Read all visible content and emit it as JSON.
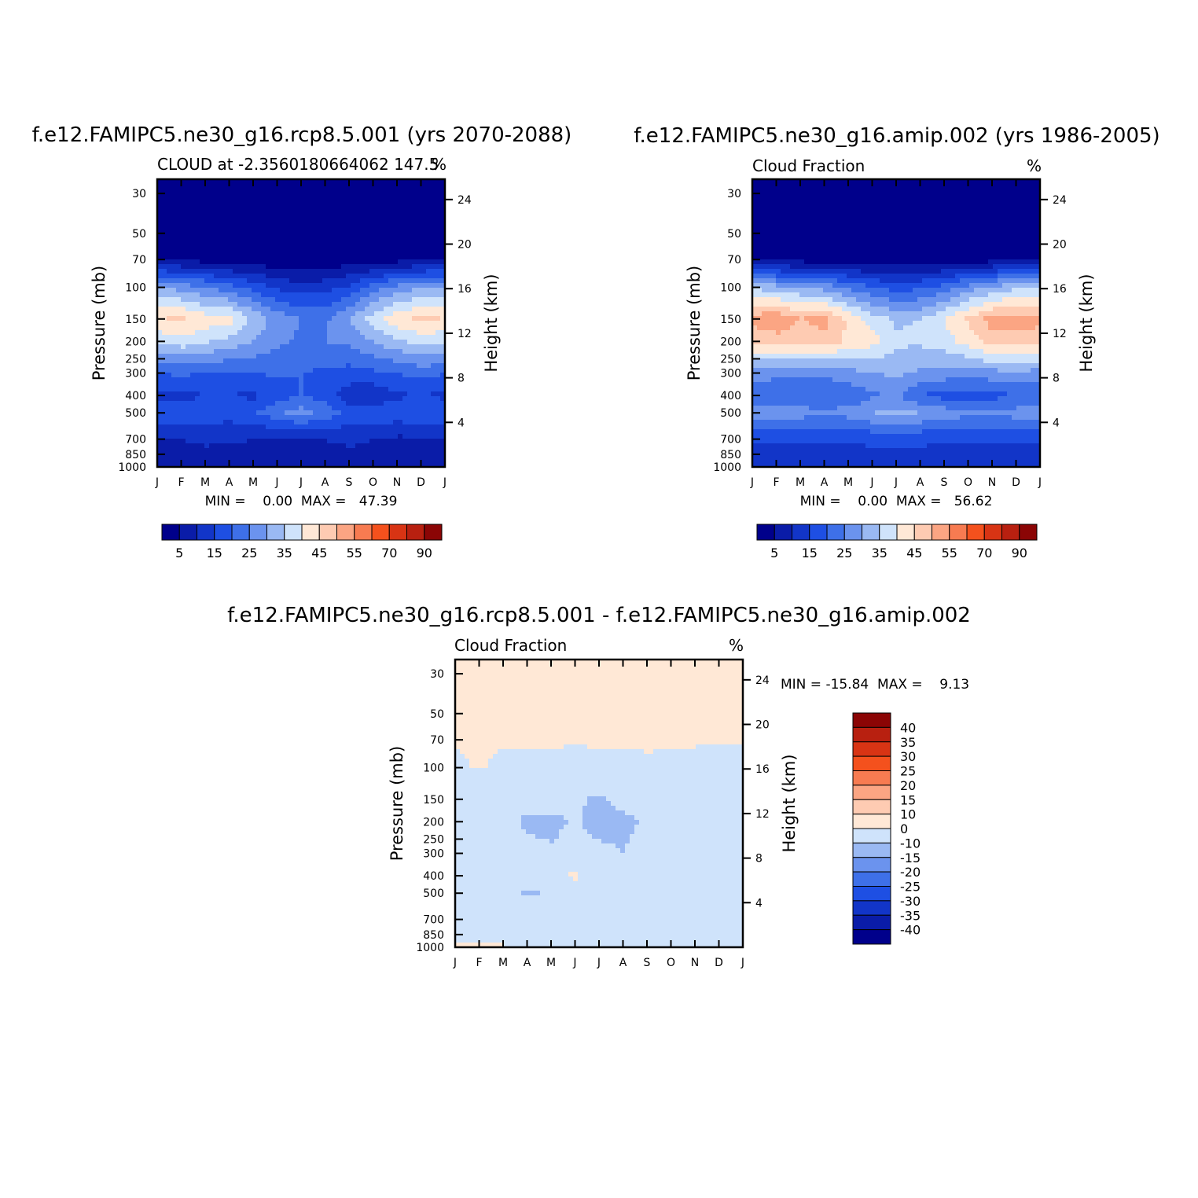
{
  "colors": {
    "abs_scale": [
      "#00008b",
      "#0a1ca8",
      "#1235c8",
      "#1e4fe3",
      "#3e70e8",
      "#6b93ee",
      "#9ab9f3",
      "#cfe3fb",
      "#ffe8d6",
      "#fecbb2",
      "#fba583",
      "#f77b51",
      "#f4511d",
      "#d83414",
      "#b82010",
      "#8b0505"
    ],
    "diff_scale": [
      "#00008b",
      "#0a1ca8",
      "#1235c8",
      "#1e4fe3",
      "#3e70e8",
      "#6b93ee",
      "#9ab9f3",
      "#cfe3fb",
      "#ffe8d6",
      "#fecbb2",
      "#fba583",
      "#f77b51",
      "#f4511d",
      "#d83414",
      "#b82010",
      "#8b0505"
    ]
  },
  "chart_data": [
    {
      "type": "heatmap",
      "title": "f.e12.FAMIPC5.ne30_g16.rcp8.5.001 (yrs 2070-2088)",
      "subtitle_left": "CLOUD at -2.3560180664062 147.5",
      "subtitle_right": "%",
      "xlabel": "",
      "ylabel": "Pressure (mb)",
      "ylabel_right": "Height (km)",
      "x_ticks": [
        "J",
        "F",
        "M",
        "A",
        "M",
        "J",
        "J",
        "A",
        "S",
        "O",
        "N",
        "D",
        "J"
      ],
      "y_ticks": [
        30,
        50,
        70,
        100,
        150,
        200,
        250,
        300,
        400,
        500,
        700,
        850,
        1000
      ],
      "y_right_ticks": [
        24,
        20,
        16,
        12,
        8,
        4
      ],
      "ylim": [
        1000,
        25
      ],
      "stats": "MIN =    0.00  MAX =   47.39",
      "colorbar_labels": [
        "5",
        "15",
        "25",
        "35",
        "45",
        "55",
        "70",
        "90"
      ],
      "field": {
        "months": [
          0,
          1,
          2,
          3,
          4,
          5,
          6,
          7,
          8,
          9,
          10,
          11,
          12
        ],
        "levels_mb": [
          25,
          70,
          100,
          150,
          200,
          300,
          400,
          500,
          700,
          850,
          1000
        ],
        "values": [
          [
            0,
            0,
            0,
            0,
            0,
            0,
            0,
            0,
            0,
            0,
            0,
            0,
            0
          ],
          [
            5,
            4,
            3,
            2,
            2,
            1,
            1,
            1,
            2,
            2,
            3,
            4,
            5
          ],
          [
            30,
            28,
            25,
            22,
            18,
            14,
            12,
            13,
            16,
            22,
            27,
            30,
            30
          ],
          [
            45,
            46,
            43,
            42,
            34,
            28,
            25,
            24,
            30,
            38,
            44,
            46,
            45
          ],
          [
            36,
            38,
            36,
            33,
            30,
            26,
            24,
            25,
            26,
            30,
            34,
            37,
            36
          ],
          [
            20,
            21,
            20,
            19,
            20,
            21,
            20,
            19,
            18,
            19,
            20,
            22,
            20
          ],
          [
            14,
            13,
            15,
            15,
            14,
            17,
            20,
            18,
            12,
            11,
            14,
            15,
            14
          ],
          [
            19,
            20,
            18,
            17,
            19,
            24,
            27,
            23,
            18,
            19,
            18,
            19,
            19
          ],
          [
            9,
            10,
            11,
            11,
            10,
            9,
            9,
            10,
            11,
            10,
            9,
            9,
            9
          ],
          [
            6,
            8,
            9,
            7,
            8,
            9,
            9,
            9,
            9,
            9,
            8,
            6,
            6
          ],
          [
            10,
            10,
            10,
            10,
            10,
            10,
            10,
            10,
            10,
            10,
            10,
            10,
            10
          ]
        ]
      }
    },
    {
      "type": "heatmap",
      "title": "f.e12.FAMIPC5.ne30_g16.amip.002 (yrs 1986-2005)",
      "subtitle_left": "Cloud Fraction",
      "subtitle_right": "%",
      "xlabel": "",
      "ylabel": "Pressure (mb)",
      "ylabel_right": "Height (km)",
      "x_ticks": [
        "J",
        "F",
        "M",
        "A",
        "M",
        "J",
        "J",
        "A",
        "S",
        "O",
        "N",
        "D",
        "J"
      ],
      "y_ticks": [
        30,
        50,
        70,
        100,
        150,
        200,
        250,
        300,
        400,
        500,
        700,
        850,
        1000
      ],
      "y_right_ticks": [
        24,
        20,
        16,
        12,
        8,
        4
      ],
      "ylim": [
        1000,
        25
      ],
      "stats": "MIN =    0.00  MAX =   56.62",
      "colorbar_labels": [
        "5",
        "15",
        "25",
        "35",
        "45",
        "55",
        "70",
        "90"
      ],
      "field": {
        "months": [
          0,
          1,
          2,
          3,
          4,
          5,
          6,
          7,
          8,
          9,
          10,
          11,
          12
        ],
        "levels_mb": [
          25,
          70,
          100,
          150,
          200,
          300,
          400,
          500,
          700,
          850,
          1000
        ],
        "values": [
          [
            0,
            0,
            0,
            0,
            0,
            0,
            0,
            0,
            0,
            0,
            0,
            0,
            0
          ],
          [
            4,
            3,
            3,
            2,
            2,
            1,
            1,
            1,
            2,
            2,
            3,
            4,
            4
          ],
          [
            34,
            32,
            30,
            28,
            24,
            20,
            18,
            19,
            22,
            27,
            31,
            34,
            34
          ],
          [
            52,
            55,
            50,
            52,
            44,
            38,
            34,
            35,
            40,
            46,
            52,
            53,
            52
          ],
          [
            46,
            47,
            47,
            48,
            44,
            42,
            36,
            36,
            38,
            42,
            48,
            48,
            46
          ],
          [
            28,
            26,
            26,
            26,
            28,
            30,
            31,
            29,
            28,
            28,
            28,
            29,
            28
          ],
          [
            22,
            22,
            21,
            21,
            21,
            24,
            26,
            20,
            18,
            17,
            18,
            20,
            22
          ],
          [
            27,
            28,
            27,
            26,
            27,
            30,
            31,
            30,
            28,
            26,
            26,
            27,
            27
          ],
          [
            16,
            16,
            16,
            16,
            16,
            16,
            16,
            16,
            16,
            16,
            16,
            16,
            16
          ],
          [
            13,
            13,
            13,
            13,
            13,
            14,
            14,
            14,
            13,
            13,
            13,
            13,
            13
          ],
          [
            14,
            14,
            14,
            14,
            14,
            14,
            14,
            14,
            14,
            14,
            14,
            14,
            14
          ]
        ]
      }
    },
    {
      "type": "heatmap",
      "title": "f.e12.FAMIPC5.ne30_g16.rcp8.5.001 - f.e12.FAMIPC5.ne30_g16.amip.002",
      "subtitle_left": "Cloud Fraction",
      "subtitle_right": "%",
      "xlabel": "",
      "ylabel": "Pressure (mb)",
      "ylabel_right": "Height (km)",
      "x_ticks": [
        "J",
        "F",
        "M",
        "A",
        "M",
        "J",
        "J",
        "A",
        "S",
        "O",
        "N",
        "D",
        "J"
      ],
      "y_ticks": [
        30,
        50,
        70,
        100,
        150,
        200,
        250,
        300,
        400,
        500,
        700,
        850,
        1000
      ],
      "y_right_ticks": [
        24,
        20,
        16,
        12,
        8,
        4
      ],
      "ylim": [
        1000,
        25
      ],
      "stats": "MIN = -15.84  MAX =    9.13",
      "colorbar_labels": [
        "40",
        "35",
        "30",
        "25",
        "20",
        "15",
        "10",
        "0",
        "-10",
        "-15",
        "-20",
        "-25",
        "-30",
        "-35",
        "-40"
      ],
      "field": {
        "months": [
          0,
          1,
          2,
          3,
          4,
          5,
          6,
          7,
          8,
          9,
          10,
          11,
          12
        ],
        "levels_mb": [
          25,
          70,
          100,
          150,
          200,
          300,
          400,
          500,
          700,
          850,
          1000
        ],
        "values": [
          [
            1,
            1,
            1,
            1,
            1,
            1,
            1,
            1,
            1,
            1,
            1,
            1,
            1
          ],
          [
            1,
            1,
            1,
            1,
            1,
            1,
            1,
            1,
            1,
            1,
            1,
            1,
            1
          ],
          [
            -2,
            1,
            -2,
            -3,
            -2,
            -4,
            -2,
            -3,
            -1,
            -3,
            -3,
            -4,
            -3
          ],
          [
            -7,
            -10,
            -6,
            -8,
            -7,
            -9,
            -11,
            -7,
            -6,
            -8,
            -8,
            -7,
            -7
          ],
          [
            -9,
            -8,
            -8,
            -11,
            -12,
            -9,
            -13,
            -12,
            -9,
            -8,
            -8,
            -7,
            -10
          ],
          [
            -6,
            -4,
            -5,
            -8,
            -9,
            -7,
            -8,
            -10,
            -6,
            -6,
            -5,
            -5,
            -6
          ],
          [
            -6,
            -5,
            -6,
            -6,
            -4,
            2,
            -6,
            -3,
            -5,
            -6,
            -5,
            -5,
            -6
          ],
          [
            -8,
            -9,
            -8,
            -11,
            -9,
            -7,
            -10,
            -9,
            -9,
            -9,
            -10,
            -10,
            -8
          ],
          [
            -5,
            -5,
            -5,
            -5,
            -5,
            -5,
            -5,
            -5,
            -5,
            -5,
            -5,
            -5,
            -5
          ],
          [
            -4,
            -4,
            -4,
            -4,
            -4,
            -4,
            -4,
            -4,
            -4,
            -4,
            -4,
            -4,
            -4
          ],
          [
            2,
            2,
            1,
            -1,
            -1,
            -1,
            -1,
            -1,
            -1,
            -1,
            1,
            -1,
            -1
          ]
        ]
      }
    }
  ]
}
